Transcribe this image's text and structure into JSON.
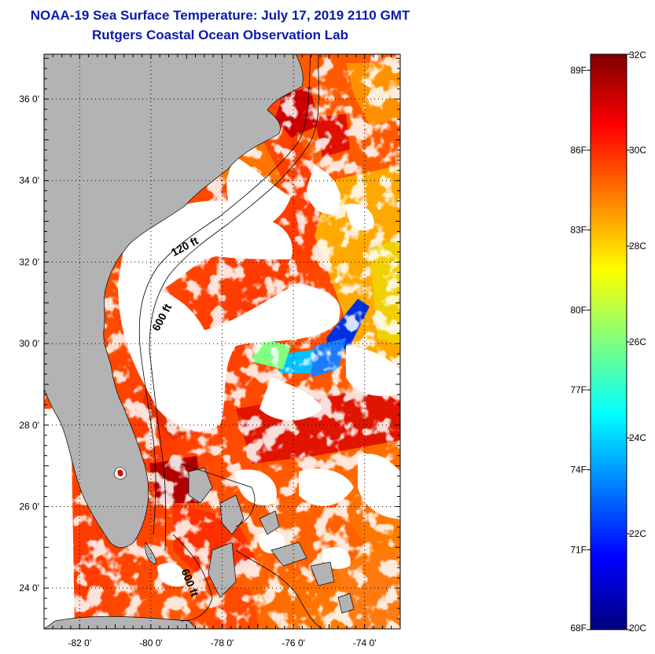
{
  "title": "NOAA-19 Sea Surface Temperature:  July 17, 2019 2110 GMT",
  "subtitle": "Rutgers Coastal Ocean Observation Lab",
  "map": {
    "lon_range": [
      -83,
      -73
    ],
    "lat_range": [
      23,
      37.1
    ],
    "lat_ticks": [
      {
        "value": 24,
        "label": "24 0'"
      },
      {
        "value": 26,
        "label": "26 0'"
      },
      {
        "value": 28,
        "label": "28 0'"
      },
      {
        "value": 30,
        "label": "30 0'"
      },
      {
        "value": 32,
        "label": "32 0'"
      },
      {
        "value": 34,
        "label": "34 0'"
      },
      {
        "value": 36,
        "label": "36 0'"
      }
    ],
    "lon_ticks": [
      {
        "value": -82,
        "label": "-82 0'"
      },
      {
        "value": -80,
        "label": "-80 0'"
      },
      {
        "value": -78,
        "label": "-78 0'"
      },
      {
        "value": -76,
        "label": "-76 0'"
      },
      {
        "value": -74,
        "label": "-74 0'"
      }
    ],
    "contour_labels": [
      {
        "text": "120 ft",
        "lon": -79.0,
        "lat": 32.3,
        "angle": -28
      },
      {
        "text": "600 ft",
        "lon": -79.6,
        "lat": 30.6,
        "angle": -62
      },
      {
        "text": "600 ft",
        "lon": -79.0,
        "lat": 24.1,
        "angle": 68
      }
    ],
    "land_color": "#b3b3b3",
    "cloud_color": "#ffffff"
  },
  "colorbar": {
    "min_c": 20,
    "max_c": 32,
    "celsius_ticks": [
      {
        "value": 32,
        "label": "32C"
      },
      {
        "value": 30,
        "label": "30C"
      },
      {
        "value": 28,
        "label": "28C"
      },
      {
        "value": 26,
        "label": "26C"
      },
      {
        "value": 24,
        "label": "24C"
      },
      {
        "value": 22,
        "label": "22C"
      },
      {
        "value": 20,
        "label": "20C"
      }
    ],
    "fahrenheit_ticks": [
      {
        "value": 89,
        "label": "89F"
      },
      {
        "value": 86,
        "label": "86F"
      },
      {
        "value": 83,
        "label": "83F"
      },
      {
        "value": 80,
        "label": "80F"
      },
      {
        "value": 77,
        "label": "77F"
      },
      {
        "value": 74,
        "label": "74F"
      },
      {
        "value": 71,
        "label": "71F"
      },
      {
        "value": 68,
        "label": "68F"
      }
    ],
    "colormap": [
      "#00007f",
      "#0000ff",
      "#007fff",
      "#00ffff",
      "#7fff7f",
      "#ffff00",
      "#ff7f00",
      "#ff0000",
      "#7f0000"
    ]
  }
}
